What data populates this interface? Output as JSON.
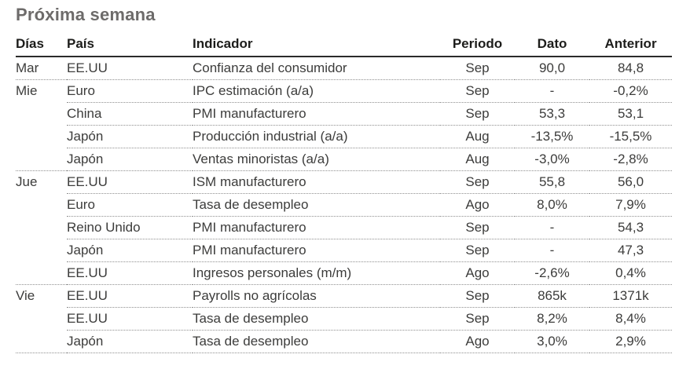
{
  "title": "Próxima semana",
  "colors": {
    "title_text": "#6d6b6a",
    "header_text": "#1d1d1b",
    "body_text": "#3c3c3b",
    "header_rule": "#2b2b2a",
    "dotted_rule": "#8f8f8f",
    "background": "#ffffff"
  },
  "table": {
    "columns": {
      "dias": "Días",
      "pais": "País",
      "indicador": "Indicador",
      "periodo": "Periodo",
      "dato": "Dato",
      "anterior": "Anterior"
    },
    "rows": [
      {
        "dias": "Mar",
        "pais": "EE.UU",
        "indicador": "Confianza del consumidor",
        "periodo": "Sep",
        "dato": "90,0",
        "anterior": "84,8"
      },
      {
        "dias": "Mie",
        "pais": "Euro",
        "indicador": "IPC estimación (a/a)",
        "periodo": "Sep",
        "dato": "-",
        "anterior": "-0,2%"
      },
      {
        "dias": "",
        "pais": "China",
        "indicador": "PMI manufacturero",
        "periodo": "Sep",
        "dato": "53,3",
        "anterior": "53,1"
      },
      {
        "dias": "",
        "pais": "Japón",
        "indicador": "Producción industrial (a/a)",
        "periodo": "Aug",
        "dato": "-13,5%",
        "anterior": "-15,5%"
      },
      {
        "dias": "",
        "pais": "Japón",
        "indicador": "Ventas minoristas (a/a)",
        "periodo": "Aug",
        "dato": "-3,0%",
        "anterior": "-2,8%"
      },
      {
        "dias": "Jue",
        "pais": "EE.UU",
        "indicador": "ISM manufacturero",
        "periodo": "Sep",
        "dato": "55,8",
        "anterior": "56,0"
      },
      {
        "dias": "",
        "pais": "Euro",
        "indicador": "Tasa de desempleo",
        "periodo": "Ago",
        "dato": "8,0%",
        "anterior": "7,9%"
      },
      {
        "dias": "",
        "pais": "Reino Unido",
        "indicador": "PMI manufacturero",
        "periodo": "Sep",
        "dato": "-",
        "anterior": "54,3"
      },
      {
        "dias": "",
        "pais": "Japón",
        "indicador": "PMI manufacturero",
        "periodo": "Sep",
        "dato": "-",
        "anterior": "47,3"
      },
      {
        "dias": "",
        "pais": "EE.UU",
        "indicador": "Ingresos personales (m/m)",
        "periodo": "Ago",
        "dato": "-2,6%",
        "anterior": "0,4%"
      },
      {
        "dias": "Vie",
        "pais": "EE.UU",
        "indicador": "Payrolls no agrícolas",
        "periodo": "Sep",
        "dato": "865k",
        "anterior": "1371k"
      },
      {
        "dias": "",
        "pais": "EE.UU",
        "indicador": "Tasa de desempleo",
        "periodo": "Sep",
        "dato": "8,2%",
        "anterior": "8,4%"
      },
      {
        "dias": "",
        "pais": "Japón",
        "indicador": "Tasa de desempleo",
        "periodo": "Ago",
        "dato": "3,0%",
        "anterior": "2,9%"
      }
    ]
  }
}
